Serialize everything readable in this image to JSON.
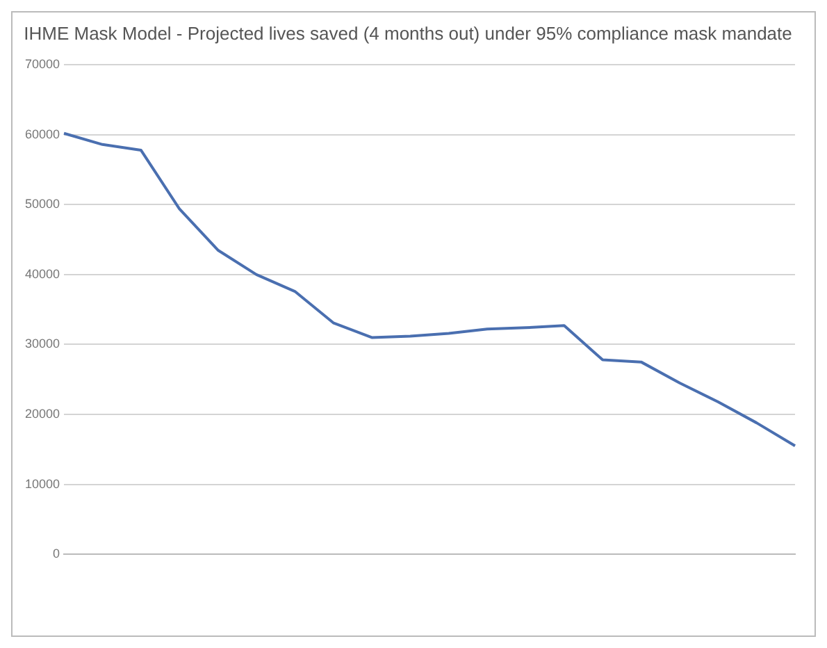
{
  "chart_data": {
    "type": "line",
    "title": "IHME Mask Model - Projected lives saved (4 months out) under 95% compliance mask mandate",
    "categories": [
      null,
      null,
      null,
      null,
      null,
      null,
      null,
      null,
      null,
      null,
      null,
      null,
      null,
      null,
      null,
      null,
      null,
      null,
      null,
      null
    ],
    "series": [
      {
        "color": "#4a6fb0",
        "values": [
          60200,
          58600,
          57800,
          49400,
          43500,
          40000,
          37600,
          33100,
          31000,
          31200,
          31600,
          32200,
          32400,
          32700,
          27800,
          27500,
          24500,
          21800,
          18800,
          15500
        ]
      }
    ],
    "ylim": [
      0,
      70000
    ],
    "yticks": [
      0,
      10000,
      20000,
      30000,
      40000,
      50000,
      60000,
      70000
    ],
    "grid": "y",
    "legend": false,
    "marker": "none",
    "line_style": "solid"
  }
}
